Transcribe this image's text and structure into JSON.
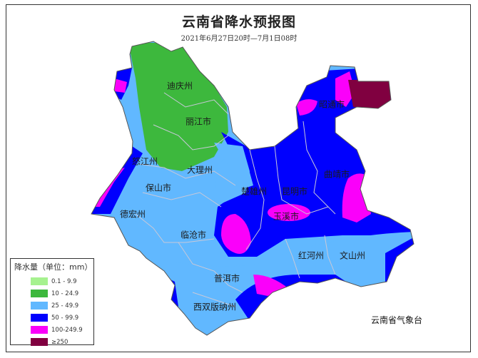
{
  "title": "云南省降水预报图",
  "subtitle": "2021年6月27日20时—7月1日08时",
  "agency": "云南省气象台",
  "cities": [
    "迪庆州",
    "丽江市",
    "怒江州",
    "大理州",
    "保山市",
    "德宏州",
    "临沧市",
    "楚雄州",
    "昆明市",
    "玉溪市",
    "曲靖市",
    "昭通市",
    "红河州",
    "文山州",
    "普洱市",
    "西双版纳州"
  ],
  "legend": {
    "title": "降水量（单位：mm）",
    "items": [
      {
        "label": "0.1 - 9.9",
        "color": "#a6f28f"
      },
      {
        "label": "10 - 24.9",
        "color": "#3db83d"
      },
      {
        "label": "25 - 49.9",
        "color": "#61b8ff"
      },
      {
        "label": "50 - 99.9",
        "color": "#0000fe"
      },
      {
        "label": "100-249.9",
        "color": "#fa00fa"
      },
      {
        "label": "≥250",
        "color": "#800040"
      }
    ]
  }
}
